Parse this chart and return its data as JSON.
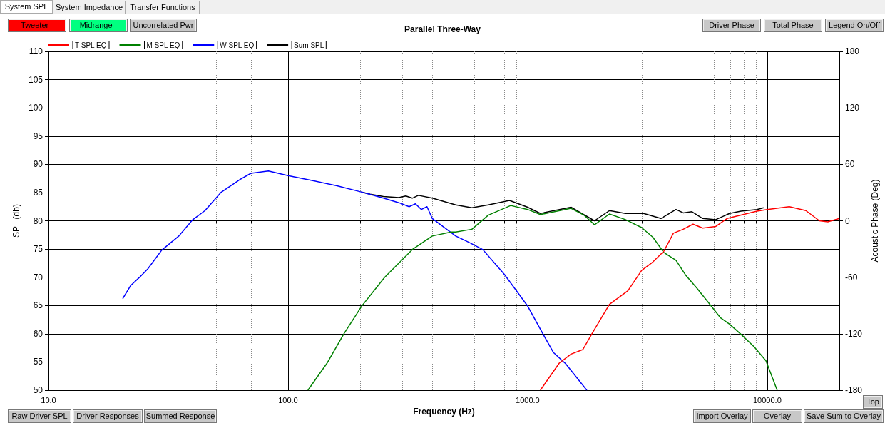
{
  "chart_data": {
    "type": "line",
    "title": "Parallel Three-Way",
    "xlabel": "Frequency (Hz)",
    "ylabel": "SPL (db)",
    "y2label": "Acoustic Phase (Deg)",
    "annotations": [
      "System SPL",
      "System Impedance",
      "Transfer Functions",
      "Tweeter -",
      "Midrange -",
      "Uncorrelated Pwr",
      "Driver Phase",
      "Total Phase",
      "Legend On/Off",
      "Raw Driver SPL",
      "Driver Responses",
      "Summed Response",
      "Import Overlay",
      "Overlay",
      "Save Sum to Overlay",
      "Top"
    ],
    "log": "x",
    "grid": true,
    "legend": "top left",
    "marker": "none",
    "xlim": [
      10,
      20000
    ],
    "xticks": [
      {
        "value": 10,
        "label": "10.0"
      },
      {
        "value": 20,
        "label": null
      },
      {
        "value": 30,
        "label": null
      },
      {
        "value": 40,
        "label": null
      },
      {
        "value": 50,
        "label": null
      },
      {
        "value": 60,
        "label": null
      },
      {
        "value": 70,
        "label": null
      },
      {
        "value": 80,
        "label": null
      },
      {
        "value": 90,
        "label": null
      },
      {
        "value": 100,
        "label": "100.0"
      },
      {
        "value": 200,
        "label": null
      },
      {
        "value": 300,
        "label": null
      },
      {
        "value": 400,
        "label": null
      },
      {
        "value": 500,
        "label": null
      },
      {
        "value": 600,
        "label": null
      },
      {
        "value": 700,
        "label": null
      },
      {
        "value": 800,
        "label": null
      },
      {
        "value": 900,
        "label": null
      },
      {
        "value": 1000,
        "label": "1000.0"
      },
      {
        "value": 2000,
        "label": null
      },
      {
        "value": 3000,
        "label": null
      },
      {
        "value": 4000,
        "label": null
      },
      {
        "value": 5000,
        "label": null
      },
      {
        "value": 6000,
        "label": null
      },
      {
        "value": 7000,
        "label": null
      },
      {
        "value": 8000,
        "label": null
      },
      {
        "value": 9000,
        "label": null
      },
      {
        "value": 10000,
        "label": "10000.0"
      },
      {
        "value": 20000,
        "label": null
      }
    ],
    "ylim": [
      50,
      110
    ],
    "yticks": [
      50,
      55,
      60,
      65,
      70,
      75,
      80,
      85,
      90,
      95,
      100,
      105,
      110
    ],
    "y2lim": [
      -180,
      180
    ],
    "y2ticks": [
      -180,
      -120,
      -60,
      0,
      60,
      120,
      180
    ],
    "series": [
      {
        "name": "T SPL EQ",
        "color": "#ff0000",
        "x": [
          1130,
          1355,
          1517,
          1700,
          1860,
          2195,
          2620,
          2990,
          3330,
          3700,
          4060,
          4460,
          4900,
          5380,
          6100,
          6800,
          7770,
          9060,
          10000,
          12360,
          14500,
          16500,
          17900,
          20000
        ],
        "values": [
          50,
          54.8,
          56.4,
          57.2,
          60.1,
          65.2,
          67.6,
          71.2,
          72.7,
          74.6,
          77.8,
          78.5,
          79.4,
          78.7,
          79,
          80.4,
          81,
          81.7,
          82,
          82.5,
          81.8,
          80,
          79.8,
          80.4
        ]
      },
      {
        "name": "M SPL EQ",
        "color": "#008000",
        "x": [
          121,
          146,
          171,
          203,
          253,
          332,
          400,
          479,
          501,
          585,
          685,
          850,
          1000,
          1130,
          1517,
          1720,
          1900,
          2195,
          2560,
          2990,
          3330,
          3700,
          4160,
          4580,
          5080,
          5640,
          6390,
          6960,
          7770,
          8810,
          9880,
          11000
        ],
        "values": [
          50,
          54.9,
          60,
          64.9,
          70,
          75,
          77.3,
          78,
          78,
          78.5,
          81,
          82.7,
          82,
          81.1,
          82.2,
          81,
          79.3,
          81.2,
          80.2,
          78.8,
          77.1,
          74.4,
          73,
          70.3,
          68.1,
          65.7,
          62.8,
          61.7,
          59.9,
          57.7,
          55.2,
          50
        ]
      },
      {
        "name": "W SPL EQ",
        "color": "#0000ff",
        "x": [
          20.4,
          22,
          24,
          26,
          29.7,
          35,
          39.8,
          45,
          52.4,
          63,
          70,
          82.8,
          100,
          130,
          160,
          202,
          250,
          290,
          320,
          340,
          360,
          380,
          400,
          501,
          574,
          650,
          800,
          1000,
          1161,
          1280,
          1440,
          1766
        ],
        "values": [
          66.2,
          68.5,
          70,
          71.5,
          74.8,
          77.3,
          80.1,
          81.8,
          85,
          87.3,
          88.4,
          88.8,
          88,
          87,
          86.2,
          85.1,
          84,
          83.2,
          82.5,
          83,
          82,
          82.5,
          80.4,
          77.3,
          76.1,
          74.9,
          70.5,
          64.9,
          59.9,
          56.7,
          54.7,
          50
        ]
      },
      {
        "name": "Sum SPL",
        "color": "#000000",
        "x": [
          202,
          220,
          250,
          290,
          310,
          330,
          350,
          400,
          501,
          585,
          685,
          840,
          1000,
          1130,
          1517,
          1900,
          2195,
          2560,
          3050,
          3600,
          4160,
          4460,
          4850,
          5380,
          6100,
          6960,
          7770,
          9060,
          9660
        ],
        "values": [
          85.1,
          84.7,
          84.3,
          84.1,
          84.4,
          84,
          84.5,
          84,
          82.8,
          82.3,
          82.8,
          83.6,
          82.4,
          81.3,
          82.4,
          80,
          81.8,
          81.3,
          81.3,
          80.4,
          82,
          81.4,
          81.6,
          80.4,
          80.2,
          81.3,
          81.7,
          82,
          82.3
        ]
      }
    ]
  }
}
